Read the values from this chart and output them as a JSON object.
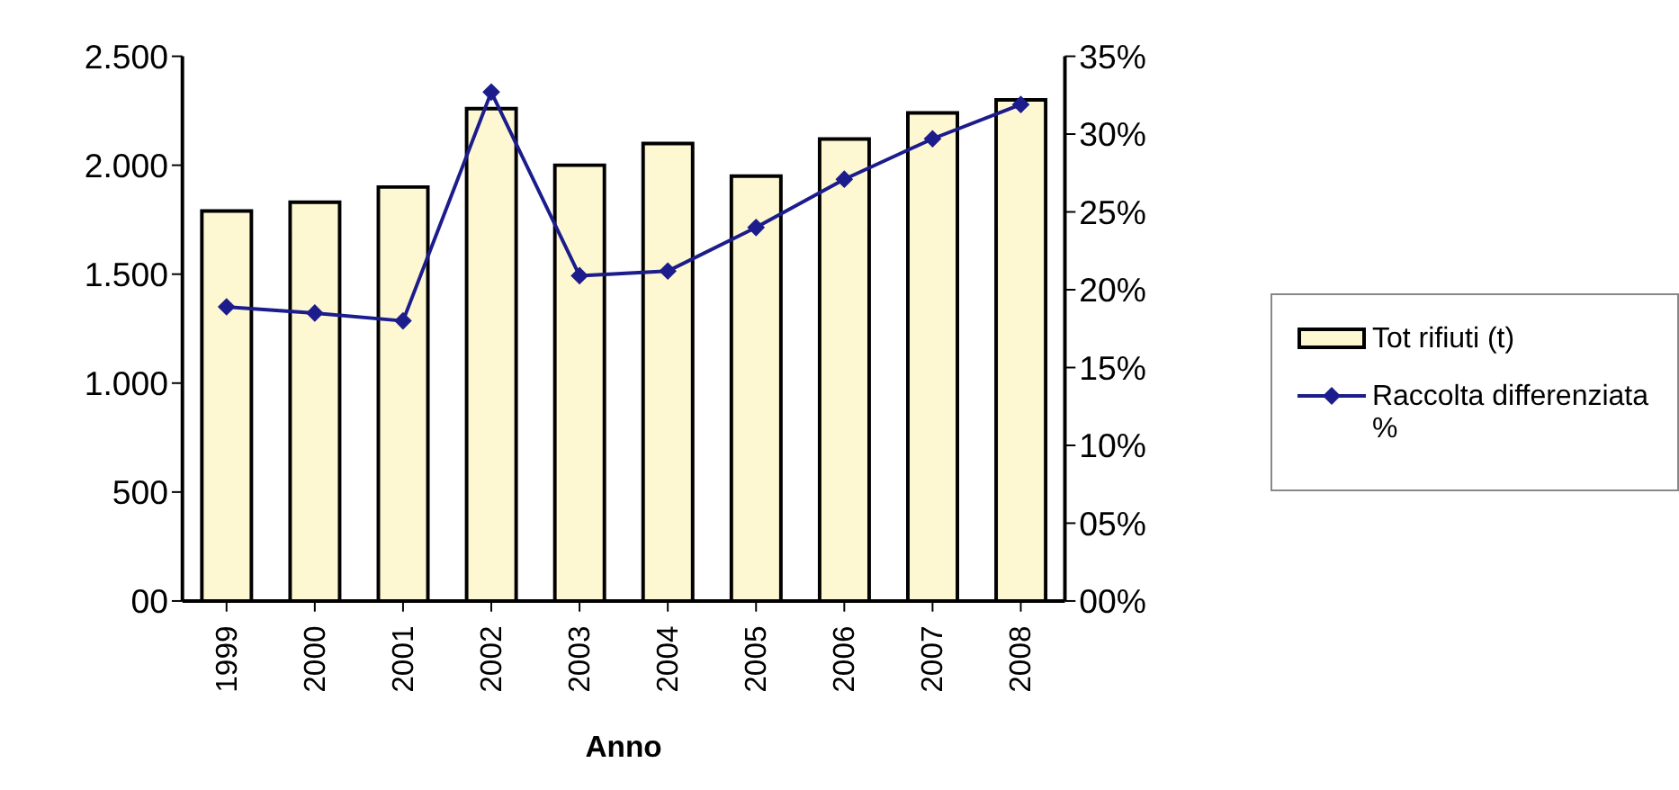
{
  "chart_data": {
    "type": "bar",
    "categories": [
      "1999",
      "2000",
      "2001",
      "2002",
      "2003",
      "2004",
      "2005",
      "2006",
      "2007",
      "2008"
    ],
    "xlabel": "Anno",
    "series": [
      {
        "name": "Tot rifiuti (t)",
        "color": "#fdf8d2",
        "values": [
          1790,
          1830,
          1900,
          2260,
          2000,
          2100,
          1950,
          2120,
          2240,
          2300
        ]
      },
      {
        "name": "Raccolta differenziata %",
        "type": "line",
        "axis": "y2",
        "color": "#1c1c8c",
        "values": [
          18.9,
          18.5,
          18.0,
          32.7,
          20.9,
          21.2,
          24.0,
          27.1,
          29.7,
          31.9
        ]
      }
    ],
    "ylim": [
      0,
      2500
    ],
    "yticks": [
      {
        "value": 0,
        "label": "00"
      },
      500,
      {
        "value": 1000,
        "label": "1.000"
      },
      {
        "value": 1500,
        "label": "1.500"
      },
      {
        "value": 2000,
        "label": "2.000"
      },
      {
        "value": 2500,
        "label": "2.500"
      }
    ],
    "y2lim": [
      0,
      35
    ],
    "y2ticks": [
      {
        "value": 0,
        "label": "00%"
      },
      {
        "value": 5,
        "label": "05%"
      },
      {
        "value": 10,
        "label": "10%"
      },
      {
        "value": 15,
        "label": "15%"
      },
      {
        "value": 20,
        "label": "20%"
      },
      {
        "value": 25,
        "label": "25%"
      },
      {
        "value": 30,
        "label": "30%"
      },
      {
        "value": 35,
        "label": "35%"
      }
    ],
    "grid": false,
    "legend": "right",
    "marker": "diamond",
    "line_style": "solid"
  }
}
